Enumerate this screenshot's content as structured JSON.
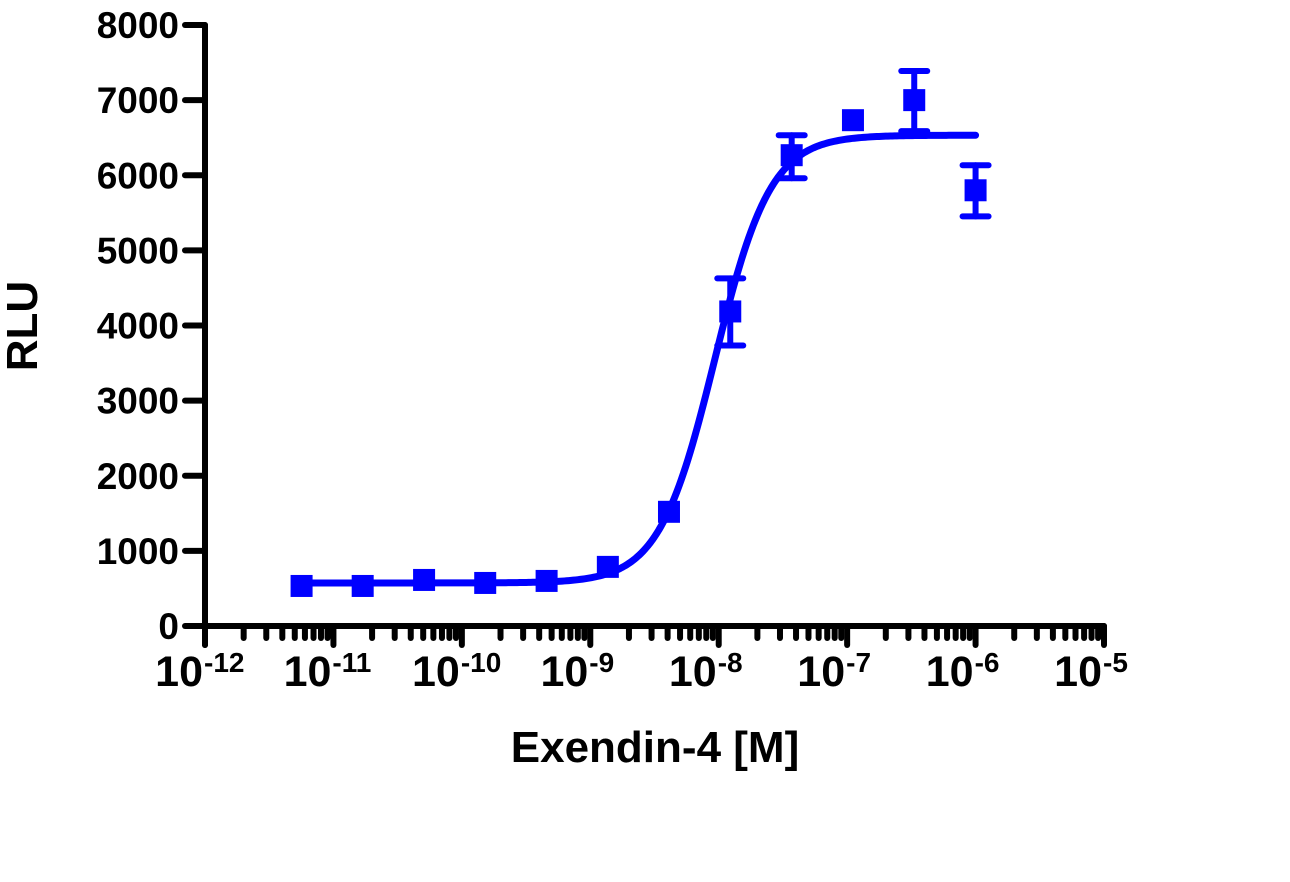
{
  "chart_data": {
    "type": "scatter",
    "title": "",
    "xlabel": "Exendin-4 [M]",
    "ylabel": "RLU",
    "xscale": "log",
    "xlim": [
      1e-12,
      1e-05
    ],
    "ylim": [
      0,
      8000
    ],
    "grid": false,
    "legend": null,
    "x_ticks": [
      {
        "exp": "-12",
        "value": 1e-12
      },
      {
        "exp": "-11",
        "value": 1e-11
      },
      {
        "exp": "-10",
        "value": 1e-10
      },
      {
        "exp": "-9",
        "value": 1e-09
      },
      {
        "exp": "-8",
        "value": 1e-08
      },
      {
        "exp": "-7",
        "value": 1e-07
      },
      {
        "exp": "-6",
        "value": 1e-06
      },
      {
        "exp": "-5",
        "value": 1e-05
      }
    ],
    "x_tick_base": "10",
    "y_ticks": [
      0,
      1000,
      2000,
      3000,
      4000,
      5000,
      6000,
      7000,
      8000
    ],
    "series": [
      {
        "name": "Exendin-4",
        "color": "#0000ff",
        "marker": "square",
        "x": [
          5.65e-12,
          1.69e-11,
          5.08e-11,
          1.52e-10,
          4.57e-10,
          1.37e-09,
          4.1e-09,
          1.23e-08,
          3.7e-08,
          1.11e-07,
          3.33e-07,
          1e-06
        ],
        "y": [
          533,
          533,
          613,
          573,
          600,
          787,
          1520,
          4187,
          6267,
          6733,
          7000,
          5800
        ],
        "error_upper": [
          null,
          null,
          null,
          null,
          null,
          null,
          null,
          4627,
          6533,
          null,
          7387,
          6133
        ],
        "error_lower": [
          null,
          null,
          null,
          null,
          null,
          null,
          null,
          3733,
          5960,
          null,
          6587,
          5453
        ]
      }
    ],
    "fit": {
      "model": "sigmoidal dose-response (4PL)",
      "color": "#0000ff",
      "bottom": 573,
      "top": 6533,
      "logEC50": -8.03,
      "hill_slope": 2.0,
      "x_range": [
        5.65e-12,
        1e-06
      ]
    }
  }
}
